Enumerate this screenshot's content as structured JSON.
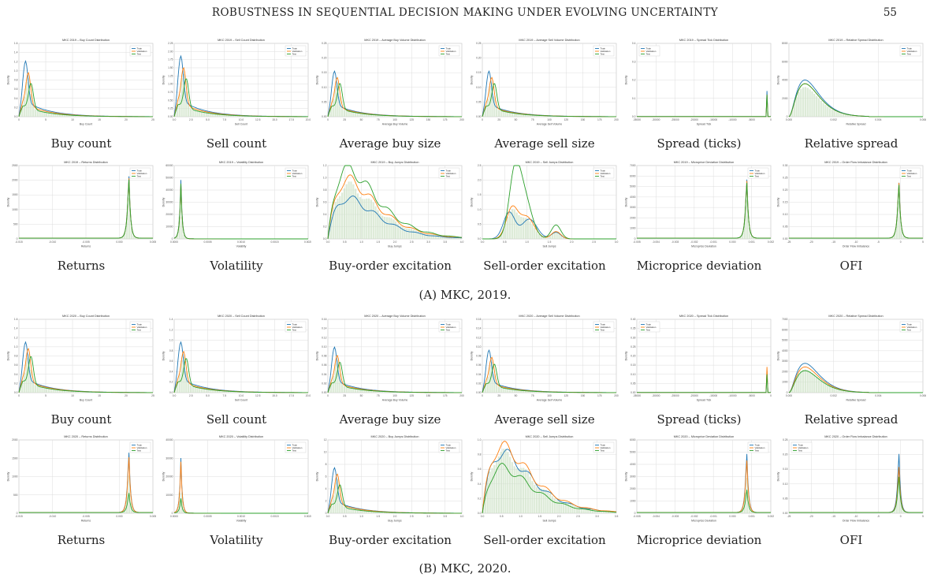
{
  "header": {
    "running_head": "ROBUSTNESS IN SEQUENTIAL DECISION MAKING UNDER EVOLVING UNCERTAINTY",
    "page_number": "55"
  },
  "legend_labels": [
    "Train",
    "Validation",
    "Test"
  ],
  "colors": {
    "train": "#1f77b4",
    "validation": "#ff7f0e",
    "test": "#2ca02c",
    "hist": "#cfe3c8",
    "grid": "#dddddd"
  },
  "figures": [
    {
      "caption": "(A) MKC, 2019.",
      "rows": [
        [
          {
            "label": "Buy count",
            "title": "MKC 2019 – Buy Count Distribution",
            "xlabel": "Buy Count",
            "ylabel": "Density",
            "shape": "spike-decay",
            "peaks": [
              0.55,
              0.45,
              0.35
            ],
            "legend": "top-right",
            "xticks": [
              "0",
              "5",
              "10",
              "15",
              "20",
              "25"
            ],
            "yticks": [
              "0.0",
              "0.2",
              "0.4",
              "0.6",
              "0.8",
              "1.0",
              "1.2",
              "1.4",
              "1.6"
            ]
          },
          {
            "label": "Sell count",
            "title": "MKC 2019 – Sell Count Distribution",
            "xlabel": "Sell Count",
            "ylabel": "Density",
            "shape": "spike-decay",
            "peaks": [
              0.6,
              0.5,
              0.4
            ],
            "legend": "top-right",
            "xticks": [
              "0.0",
              "2.5",
              "5.0",
              "7.5",
              "10.0",
              "12.5",
              "15.0",
              "17.5",
              "20.0"
            ],
            "yticks": [
              "0.00",
              "0.25",
              "0.50",
              "0.75",
              "1.00",
              "1.25",
              "1.50",
              "1.75",
              "2.00",
              "2.25"
            ]
          },
          {
            "label": "Average buy size",
            "title": "MKC 2019 – Average Buy Volume Distribution",
            "xlabel": "Average Buy Volume",
            "ylabel": "Density",
            "shape": "spike-decay",
            "peaks": [
              0.45,
              0.4,
              0.35
            ],
            "legend": "top-right",
            "xticks": [
              "0",
              "25",
              "50",
              "75",
              "100",
              "125",
              "150",
              "175",
              "200"
            ],
            "yticks": [
              "0.00",
              "0.05",
              "0.10",
              "0.15",
              "0.20",
              "0.25"
            ]
          },
          {
            "label": "Average sell size",
            "title": "MKC 2019 – Average Sell Volume Distribution",
            "xlabel": "Average Sell Volume",
            "ylabel": "Density",
            "shape": "spike-decay",
            "peaks": [
              0.45,
              0.4,
              0.35
            ],
            "legend": "top-right",
            "xticks": [
              "0",
              "25",
              "50",
              "75",
              "100",
              "125",
              "150",
              "175",
              "200"
            ],
            "yticks": [
              "0.00",
              "0.05",
              "0.10",
              "0.15",
              "0.20",
              "0.25"
            ]
          },
          {
            "label": "Spread (ticks)",
            "title": "MKC 2019 – Spread Tick Distribution",
            "xlabel": "Spread Tick",
            "ylabel": "Density",
            "shape": "right-bar",
            "peaks": [
              0.35,
              0.3,
              0.3
            ],
            "legend": "top-left",
            "xticks": [
              "-35000",
              "-30000",
              "-25000",
              "-20000",
              "-15000",
              "-10000",
              "-5000",
              "0"
            ],
            "yticks": [
              "0.0",
              "0.1",
              "0.2",
              "0.3",
              "0.4"
            ]
          },
          {
            "label": "Relative spread",
            "title": "MKC 2019 – Relative Spread Distribution",
            "xlabel": "Relative Spread",
            "ylabel": "Density",
            "shape": "skew-left",
            "peaks": [
              0.5,
              0.45,
              0.45
            ],
            "legend": "top-right",
            "xticks": [
              "0.000",
              "0.002",
              "0.004",
              "0.006"
            ],
            "yticks": [
              "0",
              "2000",
              "4000",
              "6000",
              "8000"
            ]
          }
        ],
        [
          {
            "label": "Returns",
            "title": "MKC 2019 – Returns Distribution",
            "xlabel": "Returns",
            "ylabel": "Density",
            "shape": "sharp-right",
            "peaks": [
              0.95,
              0.92,
              0.9
            ],
            "legend": "top-right",
            "xticks": [
              "-0.015",
              "-0.010",
              "-0.005",
              "0.000",
              "0.005"
            ],
            "yticks": [
              "0",
              "500",
              "1000",
              "1500",
              "2000",
              "2500"
            ]
          },
          {
            "label": "Volatility",
            "title": "MKC 2019 – Volatility Distribution",
            "xlabel": "Volatility",
            "ylabel": "Density",
            "shape": "sharp-left",
            "peaks": [
              0.8,
              0.75,
              0.75
            ],
            "legend": "top-right",
            "xticks": [
              "0.0000",
              "0.0005",
              "0.0010",
              "0.0015",
              "0.0020"
            ],
            "yticks": [
              "0",
              "10000",
              "20000",
              "30000",
              "40000",
              "50000",
              "60000"
            ]
          },
          {
            "label": "Buy-order excitation",
            "title": "MKC 2019 – Buy Jumps Distribution",
            "xlabel": "Buy Jumps",
            "ylabel": "Density",
            "shape": "hump",
            "peaks": [
              0.55,
              0.8,
              0.95
            ],
            "legend": "top-right",
            "xticks": [
              "0.0",
              "0.5",
              "1.0",
              "1.5",
              "2.0",
              "2.5",
              "3.0",
              "3.5",
              "4.0"
            ],
            "yticks": [
              "0.0",
              "0.2",
              "0.4",
              "0.6",
              "0.8",
              "1.0",
              "1.2"
            ]
          },
          {
            "label": "Sell-order excitation",
            "title": "MKC 2019 – Sell Jumps Distribution",
            "xlabel": "Sell Jumps",
            "ylabel": "Density",
            "shape": "bimodal",
            "peaks": [
              0.45,
              0.5,
              0.95
            ],
            "legend": "top-right",
            "xticks": [
              "0.0",
              "0.5",
              "1.0",
              "1.5",
              "2.0",
              "2.5",
              "3.0"
            ],
            "yticks": [
              "0.0",
              "0.5",
              "1.0",
              "1.5",
              "2.0",
              "2.5"
            ]
          },
          {
            "label": "Microprice deviation",
            "title": "MKC 2019 – Microprice Deviation Distribution",
            "xlabel": "Microprice Deviation",
            "ylabel": "Density",
            "shape": "sharp-right",
            "peaks": [
              0.9,
              0.88,
              0.85
            ],
            "legend": "top-right",
            "xticks": [
              "-0.005",
              "-0.004",
              "-0.003",
              "-0.002",
              "-0.001",
              "0.000",
              "0.001",
              "0.002"
            ],
            "yticks": [
              "0",
              "1000",
              "2000",
              "3000",
              "4000",
              "5000",
              "6000",
              "7000"
            ]
          },
          {
            "label": "OFI",
            "title": "MKC 2019 – Order Flow Imbalance Distribution",
            "xlabel": "Order Flow Imbalance",
            "ylabel": "Density",
            "shape": "sharp-right",
            "peaks": [
              0.85,
              0.85,
              0.82
            ],
            "legend": "top-right",
            "xticks": [
              "-25",
              "-20",
              "-15",
              "-10",
              "-5",
              "0",
              "5"
            ],
            "yticks": [
              "0.00",
              "0.05",
              "0.10",
              "0.15",
              "0.20",
              "0.25",
              "0.30"
            ]
          }
        ]
      ]
    },
    {
      "caption": "(B) MKC, 2020.",
      "rows": [
        [
          {
            "label": "Buy count",
            "title": "MKC 2020 – Buy Count Distribution",
            "xlabel": "Buy Count",
            "ylabel": "Density",
            "shape": "spike-decay",
            "peaks": [
              0.5,
              0.45,
              0.38
            ],
            "legend": "top-right",
            "xticks": [
              "0",
              "5",
              "10",
              "15",
              "20",
              "25"
            ],
            "yticks": [
              "0.0",
              "0.2",
              "0.4",
              "0.6",
              "0.8",
              "1.0",
              "1.2",
              "1.4",
              "1.6"
            ]
          },
          {
            "label": "Sell count",
            "title": "MKC 2020 – Sell Count Distribution",
            "xlabel": "Sell Count",
            "ylabel": "Density",
            "shape": "spike-decay",
            "peaks": [
              0.5,
              0.42,
              0.36
            ],
            "legend": "top-right",
            "xticks": [
              "0.0",
              "2.5",
              "5.0",
              "7.5",
              "10.0",
              "12.5",
              "15.0",
              "17.5",
              "20.0"
            ],
            "yticks": [
              "0.0",
              "0.2",
              "0.4",
              "0.6",
              "0.8",
              "1.0",
              "1.2",
              "1.4"
            ]
          },
          {
            "label": "Average buy size",
            "title": "MKC 2020 – Average Buy Volume Distribution",
            "xlabel": "Average Buy Volume",
            "ylabel": "Density",
            "shape": "spike-decay",
            "peaks": [
              0.45,
              0.38,
              0.32
            ],
            "legend": "top-right",
            "xticks": [
              "0",
              "25",
              "50",
              "75",
              "100",
              "125",
              "150",
              "175",
              "200"
            ],
            "yticks": [
              "0.00",
              "0.02",
              "0.04",
              "0.06",
              "0.08",
              "0.10",
              "0.12",
              "0.14",
              "0.16"
            ]
          },
          {
            "label": "Average sell size",
            "title": "MKC 2020 – Average Sell Volume Distribution",
            "xlabel": "Average Sell Volume",
            "ylabel": "Density",
            "shape": "spike-decay",
            "peaks": [
              0.42,
              0.36,
              0.3
            ],
            "legend": "top-right",
            "xticks": [
              "0",
              "25",
              "50",
              "75",
              "100",
              "125",
              "150",
              "175",
              "200"
            ],
            "yticks": [
              "0.00",
              "0.02",
              "0.04",
              "0.06",
              "0.08",
              "0.10",
              "0.12",
              "0.14",
              "0.16"
            ]
          },
          {
            "label": "Spread (ticks)",
            "title": "MKC 2020 – Spread Tick Distribution",
            "xlabel": "Spread Tick",
            "ylabel": "Density",
            "shape": "right-bar",
            "peaks": [
              0.3,
              0.35,
              0.25
            ],
            "legend": "top-left",
            "xticks": [
              "-35000",
              "-30000",
              "-25000",
              "-20000",
              "-15000",
              "-10000",
              "-5000",
              "0"
            ],
            "yticks": [
              "0.00",
              "0.05",
              "0.10",
              "0.15",
              "0.20",
              "0.25",
              "0.30",
              "0.35",
              "0.40"
            ]
          },
          {
            "label": "Relative spread",
            "title": "MKC 2020 – Relative Spread Distribution",
            "xlabel": "Relative Spread",
            "ylabel": "Density",
            "shape": "skew-left",
            "peaks": [
              0.4,
              0.35,
              0.3
            ],
            "legend": "top-right",
            "xticks": [
              "0.000",
              "0.002",
              "0.004",
              "0.006"
            ],
            "yticks": [
              "0",
              "1000",
              "2000",
              "3000",
              "4000",
              "5000",
              "6000",
              "7000"
            ]
          }
        ],
        [
          {
            "label": "Returns",
            "title": "MKC 2020 – Returns Distribution",
            "xlabel": "Returns",
            "ylabel": "Density",
            "shape": "sharp-right",
            "peaks": [
              0.92,
              0.85,
              0.3
            ],
            "legend": "top-right",
            "xticks": [
              "-0.015",
              "-0.010",
              "-0.005",
              "0.000",
              "0.005"
            ],
            "yticks": [
              "0",
              "500",
              "1000",
              "1500",
              "2000"
            ]
          },
          {
            "label": "Volatility",
            "title": "MKC 2020 – Volatility Distribution",
            "xlabel": "Volatility",
            "ylabel": "Density",
            "shape": "sharp-left",
            "peaks": [
              0.75,
              0.7,
              0.2
            ],
            "legend": "top-right",
            "xticks": [
              "0.0000",
              "0.0005",
              "0.0010",
              "0.0015",
              "0.0020"
            ],
            "yticks": [
              "0",
              "10000",
              "20000",
              "30000",
              "40000"
            ]
          },
          {
            "label": "Buy-order excitation",
            "title": "MKC 2020 – Buy Jumps Distribution",
            "xlabel": "Buy Jumps",
            "ylabel": "Density",
            "shape": "spike-decay",
            "peaks": [
              0.45,
              0.4,
              0.3
            ],
            "legend": "top-right",
            "xticks": [
              "0.0",
              "0.5",
              "1.0",
              "1.5",
              "2.0",
              "2.5",
              "3.0",
              "3.5",
              "4.0"
            ],
            "yticks": [
              "0",
              "2",
              "4",
              "6",
              "8",
              "10",
              "12"
            ]
          },
          {
            "label": "Sell-order excitation",
            "title": "MKC 2020 – Sell Jumps Distribution",
            "xlabel": "Sell Jumps",
            "ylabel": "Density",
            "shape": "hump",
            "peaks": [
              0.82,
              0.9,
              0.62
            ],
            "legend": "top-right",
            "xticks": [
              "0.0",
              "0.5",
              "1.0",
              "1.5",
              "2.0",
              "2.5",
              "3.0",
              "3.5"
            ],
            "yticks": [
              "0.0",
              "0.2",
              "0.4",
              "0.6",
              "0.8",
              "1.0"
            ]
          },
          {
            "label": "Microprice deviation",
            "title": "MKC 2020 – Microprice Deviation Distribution",
            "xlabel": "Microprice Deviation",
            "ylabel": "Density",
            "shape": "sharp-right",
            "peaks": [
              0.9,
              0.8,
              0.35
            ],
            "legend": "top-right",
            "xticks": [
              "-0.005",
              "-0.004",
              "-0.003",
              "-0.002",
              "-0.001",
              "0.000",
              "0.001",
              "0.002"
            ],
            "yticks": [
              "0",
              "1000",
              "2000",
              "3000",
              "4000",
              "5000",
              "6000"
            ]
          },
          {
            "label": "OFI",
            "title": "MKC 2020 – Order Flow Imbalance Distribution",
            "xlabel": "Order Flow Imbalance",
            "ylabel": "Density",
            "shape": "sharp-right",
            "peaks": [
              0.9,
              0.7,
              0.55
            ],
            "legend": "top-left",
            "xticks": [
              "-25",
              "-20",
              "-15",
              "-10",
              "-5",
              "0",
              "5"
            ],
            "yticks": [
              "0.00",
              "0.05",
              "0.10",
              "0.15",
              "0.20",
              "0.25"
            ]
          }
        ]
      ]
    }
  ]
}
